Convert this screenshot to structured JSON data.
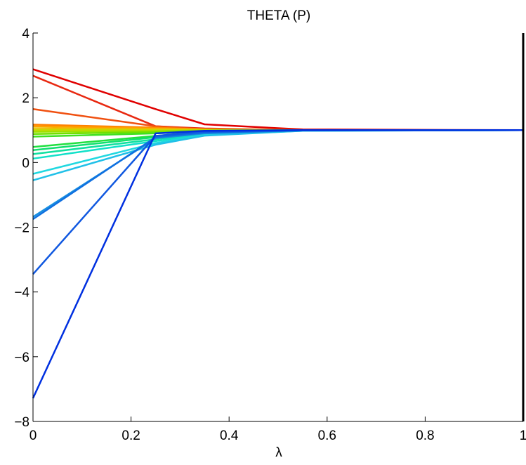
{
  "chart_data": {
    "type": "line",
    "title": "THETA (P)",
    "xlabel": "λ",
    "ylabel": "",
    "xlim": [
      0,
      1
    ],
    "ylim": [
      -8,
      4
    ],
    "xticks": [
      0,
      0.2,
      0.4,
      0.6,
      0.8,
      1
    ],
    "yticks": [
      -8,
      -6,
      -4,
      -2,
      0,
      2,
      4
    ],
    "xtick_labels": [
      "0",
      "0.2",
      "0.4",
      "0.6",
      "0.8",
      "1"
    ],
    "ytick_labels": [
      "−8",
      "−6",
      "−4",
      "−2",
      "0",
      "2",
      "4"
    ],
    "grid": false,
    "legend": "none",
    "vertical_marker_x": 1,
    "series": [
      {
        "color": "#e00000",
        "x": [
          0,
          0.25,
          0.35,
          0.55,
          1
        ],
        "y": [
          2.88,
          1.65,
          1.18,
          1.02,
          1.0
        ]
      },
      {
        "color": "#e82810",
        "x": [
          0,
          0.25,
          0.35,
          0.55,
          1
        ],
        "y": [
          2.68,
          1.12,
          1.05,
          1.0,
          1.0
        ]
      },
      {
        "color": "#f05010",
        "x": [
          0,
          0.25,
          0.35,
          0.55,
          1
        ],
        "y": [
          1.65,
          1.12,
          1.03,
          1.0,
          1.0
        ]
      },
      {
        "color": "#ff8000",
        "x": [
          0,
          0.25,
          0.35,
          0.55,
          1
        ],
        "y": [
          1.17,
          1.08,
          1.02,
          1.0,
          1.0
        ]
      },
      {
        "color": "#ffa000",
        "x": [
          0,
          0.25,
          0.35,
          0.55,
          1
        ],
        "y": [
          1.12,
          1.05,
          1.02,
          1.0,
          1.0
        ]
      },
      {
        "color": "#e8c000",
        "x": [
          0,
          0.25,
          0.35,
          0.55,
          1
        ],
        "y": [
          1.06,
          1.03,
          1.01,
          1.0,
          1.0
        ]
      },
      {
        "color": "#c8d800",
        "x": [
          0,
          0.25,
          0.35,
          0.55,
          1
        ],
        "y": [
          1.0,
          1.0,
          1.0,
          1.0,
          1.0
        ]
      },
      {
        "color": "#a0e000",
        "x": [
          0,
          0.25,
          0.35,
          0.55,
          1
        ],
        "y": [
          0.95,
          0.97,
          0.99,
          1.0,
          1.0
        ]
      },
      {
        "color": "#70e000",
        "x": [
          0,
          0.25,
          0.35,
          0.55,
          1
        ],
        "y": [
          0.88,
          0.94,
          0.98,
          1.0,
          1.0
        ]
      },
      {
        "color": "#40e020",
        "x": [
          0,
          0.25,
          0.35,
          0.55,
          1
        ],
        "y": [
          0.8,
          0.9,
          0.97,
          1.0,
          1.0
        ]
      },
      {
        "color": "#20e040",
        "x": [
          0,
          0.25,
          0.35,
          0.55,
          1
        ],
        "y": [
          0.48,
          0.82,
          0.95,
          1.0,
          1.0
        ]
      },
      {
        "color": "#10e070",
        "x": [
          0,
          0.25,
          0.35,
          0.55,
          1
        ],
        "y": [
          0.38,
          0.78,
          0.93,
          1.0,
          1.0
        ]
      },
      {
        "color": "#10e0a0",
        "x": [
          0,
          0.25,
          0.35,
          0.55,
          1
        ],
        "y": [
          0.26,
          0.72,
          0.9,
          0.99,
          1.0
        ]
      },
      {
        "color": "#10e0c8",
        "x": [
          0,
          0.25,
          0.35,
          0.55,
          1
        ],
        "y": [
          0.12,
          0.66,
          0.88,
          0.99,
          1.0
        ]
      },
      {
        "color": "#20d8e0",
        "x": [
          0,
          0.25,
          0.35,
          0.55,
          1
        ],
        "y": [
          -0.35,
          0.6,
          0.85,
          0.98,
          1.0
        ]
      },
      {
        "color": "#20c0e8",
        "x": [
          0,
          0.25,
          0.35,
          0.55,
          1
        ],
        "y": [
          -0.55,
          0.55,
          0.83,
          0.98,
          1.0
        ]
      },
      {
        "color": "#1890e0",
        "x": [
          0,
          0.25,
          0.35,
          0.55,
          1
        ],
        "y": [
          -1.68,
          0.75,
          0.9,
          0.99,
          1.0
        ]
      },
      {
        "color": "#1070e0",
        "x": [
          0,
          0.25,
          0.35,
          0.55,
          1
        ],
        "y": [
          -1.75,
          0.78,
          0.92,
          0.99,
          1.0
        ]
      },
      {
        "color": "#1058e0",
        "x": [
          0,
          0.25,
          0.35,
          0.55,
          1
        ],
        "y": [
          -3.45,
          0.82,
          0.95,
          1.0,
          1.0
        ]
      },
      {
        "color": "#0030e0",
        "x": [
          0,
          0.25,
          0.35,
          0.55,
          1
        ],
        "y": [
          -7.28,
          0.9,
          0.98,
          1.0,
          1.0
        ]
      }
    ]
  }
}
